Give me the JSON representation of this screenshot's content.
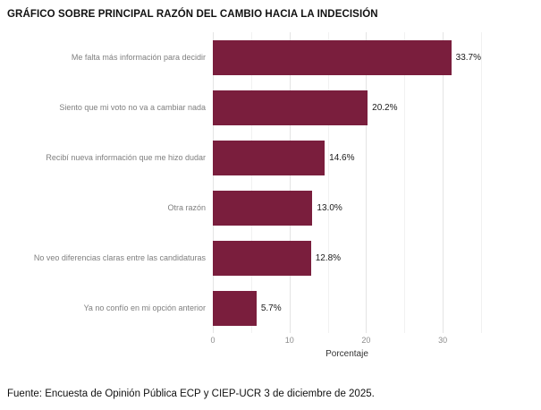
{
  "title": "GRÁFICO SOBRE PRINCIPAL RAZÓN DEL CAMBIO HACIA LA INDECISIÓN",
  "source": "Fuente: Encuesta de Opinión Pública ECP y CIEP-UCR 3 de diciembre de 2025.",
  "colors": {
    "bar": "#7A1E3D",
    "gridline_major": "#e4e4e4",
    "gridline_minor": "#f1f1f1",
    "category_label": "#7f7f7f",
    "tick_label": "#8c8c8c"
  },
  "chart_data": {
    "type": "bar",
    "orientation": "horizontal",
    "title": "GRÁFICO SOBRE PRINCIPAL RAZÓN DEL CAMBIO HACIA LA INDECISIÓN",
    "categories": [
      "Me falta más información para decidir",
      "Siento que mi voto no va a cambiar nada",
      "Recibí nueva información que me hizo dudar",
      "Otra razón",
      "No veo diferencias claras entre las candidaturas",
      "Ya no confío en mi opción anterior"
    ],
    "values": [
      33.7,
      20.2,
      14.6,
      13.0,
      12.8,
      5.7
    ],
    "value_labels": [
      "33.7%",
      "20.2%",
      "14.6%",
      "13.0%",
      "12.8%",
      "5.7%"
    ],
    "xlabel": "Porcentaje",
    "ylabel": "",
    "xlim": [
      0,
      35
    ],
    "major_ticks": [
      0,
      10,
      20,
      30
    ],
    "minor_ticks": [
      5,
      15,
      25,
      35
    ],
    "grid": "vertical",
    "legend": "none",
    "bar_color": "#7A1E3D"
  }
}
